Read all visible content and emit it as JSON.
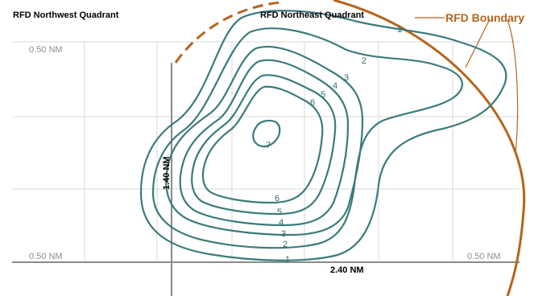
{
  "labels": {
    "nw_quadrant": "RFD Northwest Quadrant",
    "ne_quadrant": "RFD Northeast Quadrant",
    "boundary": "RFD Boundary",
    "scale_top_left": "0.50 NM",
    "scale_bottom_left": "0.50 NM",
    "scale_bottom_right": "0.50 NM",
    "scale_vertical": "1.40 NM",
    "scale_horizontal": "2.40 NM"
  },
  "contours": [
    {
      "level": "1",
      "label_a": "1",
      "label_b": "1"
    },
    {
      "level": "2",
      "label_a": "2",
      "label_b": "2"
    },
    {
      "level": "3",
      "label_a": "3",
      "label_b": "3"
    },
    {
      "level": "4",
      "label_a": "4",
      "label_b": "4"
    },
    {
      "level": "5",
      "label_a": "5",
      "label_b": "5"
    },
    {
      "level": "6",
      "label_a": "6",
      "label_b": "6"
    },
    {
      "level": "7",
      "label_a": "7"
    }
  ],
  "colors": {
    "contour": "#3b7b7b",
    "boundary": "#b5651d",
    "grid": "#d8d8d8",
    "axis": "#8a8a8a"
  }
}
